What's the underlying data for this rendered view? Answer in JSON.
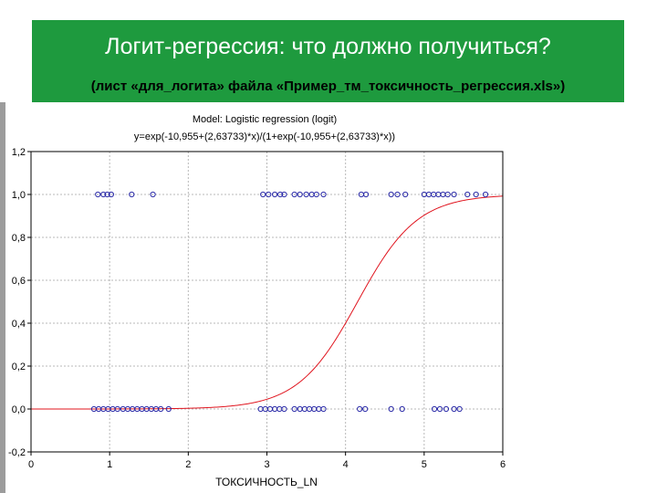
{
  "slide": {
    "title": "Логит-регрессия: что должно получиться?",
    "subtitle": "(лист «для_логита» файла «Пример_тм_токсичность_регрессия.xls»)",
    "header_color": "#1e9a3e"
  },
  "chart_data": {
    "type": "scatter",
    "title": "Model: Logistic regression (logit)",
    "subtitle": "y=exp(-10,955+(2,63733)*x)/(1+exp(-10,955+(2,63733)*x))",
    "xlabel": "ТОКСИЧНОСТЬ_LN",
    "ylabel": "",
    "xlim": [
      0,
      6
    ],
    "ylim": [
      -0.2,
      1.2
    ],
    "x_ticks": [
      "0",
      "1",
      "2",
      "3",
      "4",
      "5",
      "6"
    ],
    "y_ticks": [
      "-0,2",
      "0,0",
      "0,2",
      "0,4",
      "0,6",
      "0,8",
      "1,0",
      "1,2"
    ],
    "grid": true,
    "point_color": "#2a2aa8",
    "curve_color": "#e0141e",
    "fitted_curve": {
      "intercept": -10.955,
      "slope": 2.63733
    },
    "series": [
      {
        "y": 1,
        "x": [
          0.85,
          0.92,
          0.97,
          1.02,
          1.28,
          1.55,
          2.95,
          3.02,
          3.1,
          3.17,
          3.22,
          3.35,
          3.42,
          3.5,
          3.57,
          3.63,
          3.72,
          4.2,
          4.26,
          4.58,
          4.66,
          4.76,
          5.0,
          5.06,
          5.12,
          5.18,
          5.24,
          5.3,
          5.38,
          5.55,
          5.66,
          5.78
        ]
      },
      {
        "y": 0,
        "x": [
          0.8,
          0.86,
          0.92,
          0.98,
          1.04,
          1.1,
          1.17,
          1.23,
          1.29,
          1.35,
          1.41,
          1.47,
          1.53,
          1.59,
          1.65,
          1.75,
          2.92,
          2.98,
          3.04,
          3.1,
          3.16,
          3.22,
          3.35,
          3.42,
          3.48,
          3.54,
          3.6,
          3.66,
          3.72,
          4.18,
          4.25,
          4.58,
          4.72,
          5.13,
          5.2,
          5.28,
          5.38,
          5.45
        ]
      }
    ]
  }
}
